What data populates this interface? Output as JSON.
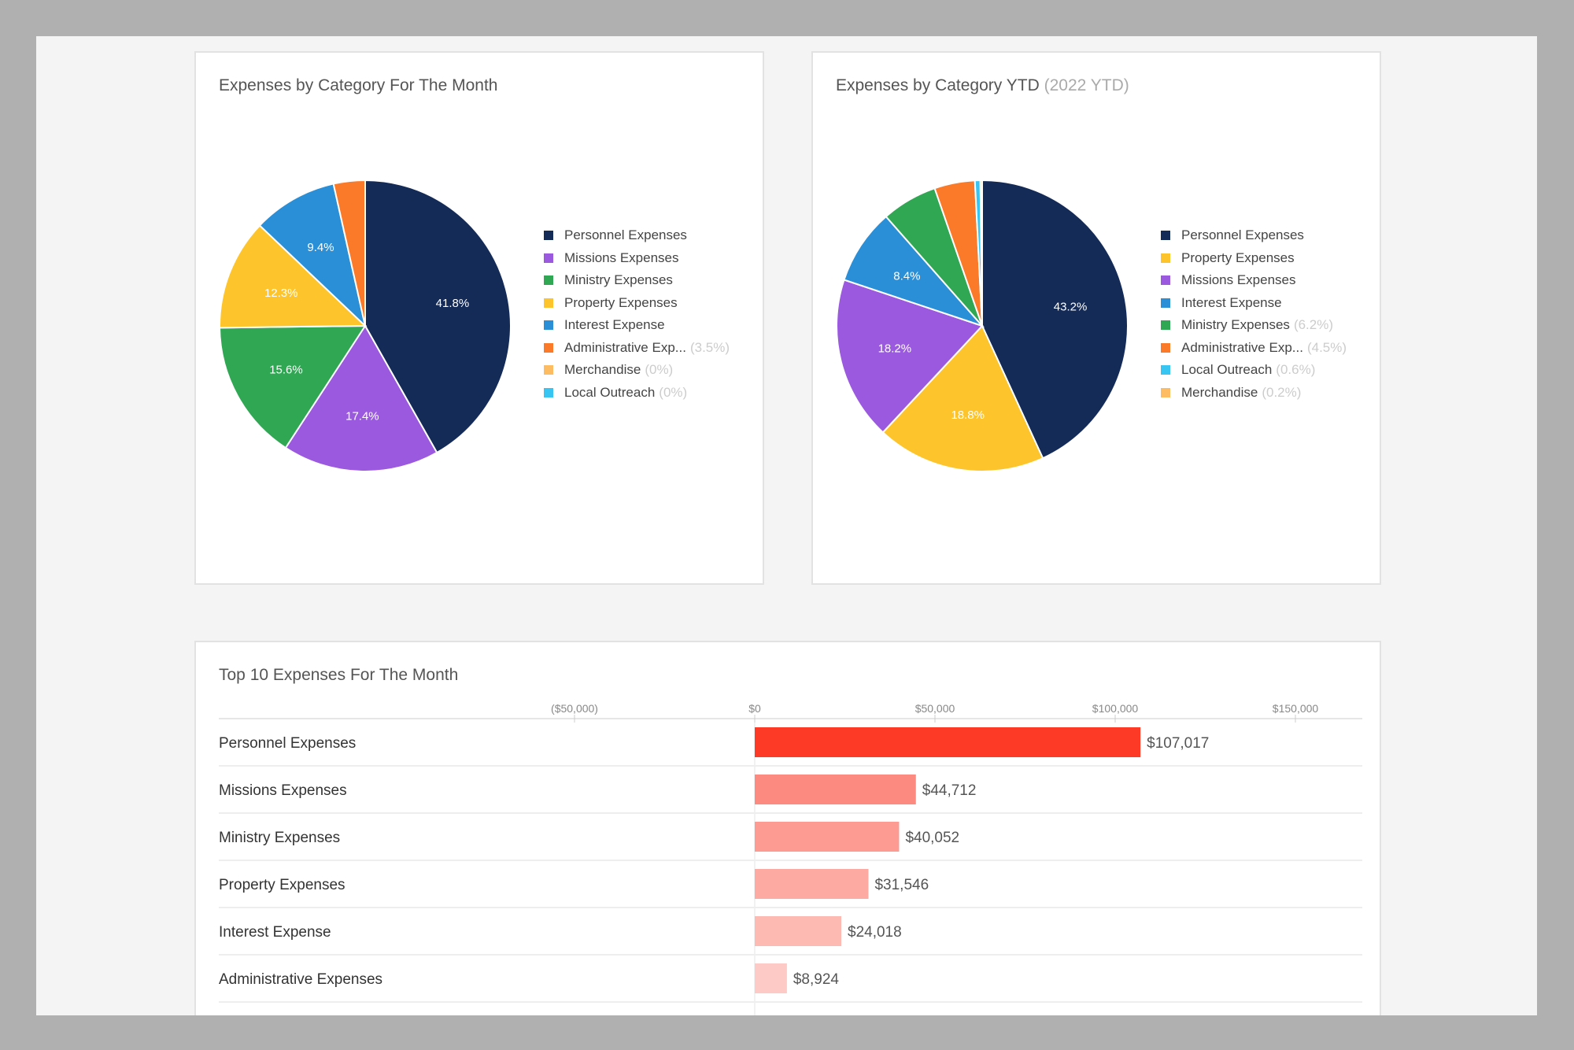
{
  "chart_data": [
    {
      "type": "pie",
      "title": "Expenses by Category For The Month",
      "subtitle": "",
      "slices": [
        {
          "label": "Personnel Expenses",
          "value": 41.8,
          "color": "#142a57",
          "show_in_slice": true
        },
        {
          "label": "Missions Expenses",
          "value": 17.4,
          "color": "#9b59e0",
          "show_in_slice": true
        },
        {
          "label": "Ministry Expenses",
          "value": 15.6,
          "color": "#30a753",
          "show_in_slice": true
        },
        {
          "label": "Property Expenses",
          "value": 12.3,
          "color": "#fdc52b",
          "show_in_slice": true
        },
        {
          "label": "Interest Expense",
          "value": 9.4,
          "color": "#2a8fd6",
          "show_in_slice": true
        },
        {
          "label": "Administrative Exp...",
          "value": 3.5,
          "color": "#fa7a2a",
          "legend_pct": "(3.5%)"
        },
        {
          "label": "Merchandise",
          "value": 0,
          "color": "#fdbb62",
          "legend_pct": "(0%)"
        },
        {
          "label": "Local Outreach",
          "value": 0,
          "color": "#39c5f2",
          "legend_pct": "(0%)"
        }
      ],
      "legend": "right"
    },
    {
      "type": "pie",
      "title": "Expenses by Category YTD",
      "subtitle": "(2022 YTD)",
      "slices": [
        {
          "label": "Personnel Expenses",
          "value": 43.2,
          "color": "#142a57",
          "show_in_slice": true
        },
        {
          "label": "Property Expenses",
          "value": 18.8,
          "color": "#fdc52b",
          "show_in_slice": true
        },
        {
          "label": "Missions Expenses",
          "value": 18.2,
          "color": "#9b59e0",
          "show_in_slice": true
        },
        {
          "label": "Interest Expense",
          "value": 8.4,
          "color": "#2a8fd6",
          "show_in_slice": true
        },
        {
          "label": "Ministry Expenses",
          "value": 6.2,
          "color": "#30a753",
          "legend_pct": "(6.2%)"
        },
        {
          "label": "Administrative Exp...",
          "value": 4.5,
          "color": "#fa7a2a",
          "legend_pct": "(4.5%)"
        },
        {
          "label": "Local Outreach",
          "value": 0.6,
          "color": "#39c5f2",
          "legend_pct": "(0.6%)"
        },
        {
          "label": "Merchandise",
          "value": 0.2,
          "color": "#fdbb62",
          "legend_pct": "(0.2%)"
        }
      ],
      "legend": "right"
    },
    {
      "type": "bar",
      "orientation": "horizontal",
      "title": "Top 10 Expenses For The Month",
      "xlim": [
        -50000,
        175000
      ],
      "ticks": [
        {
          "value": -50000,
          "label": "($50,000)"
        },
        {
          "value": 0,
          "label": "$0"
        },
        {
          "value": 50000,
          "label": "$50,000"
        },
        {
          "value": 100000,
          "label": "$100,000"
        },
        {
          "value": 150000,
          "label": "$150,000"
        }
      ],
      "categories": [
        "Personnel Expenses",
        "Missions Expenses",
        "Ministry Expenses",
        "Property Expenses",
        "Interest Expense",
        "Administrative Expenses"
      ],
      "values": [
        107017,
        44712,
        40052,
        31546,
        24018,
        8924
      ],
      "value_labels": [
        "$107,017",
        "$44,712",
        "$40,052",
        "$31,546",
        "$24,018",
        "$8,924"
      ],
      "colors": [
        "#fd3a26",
        "#fd8a80",
        "#fd9b92",
        "#fdaaa2",
        "#fdbab3",
        "#fdcac5"
      ]
    }
  ]
}
